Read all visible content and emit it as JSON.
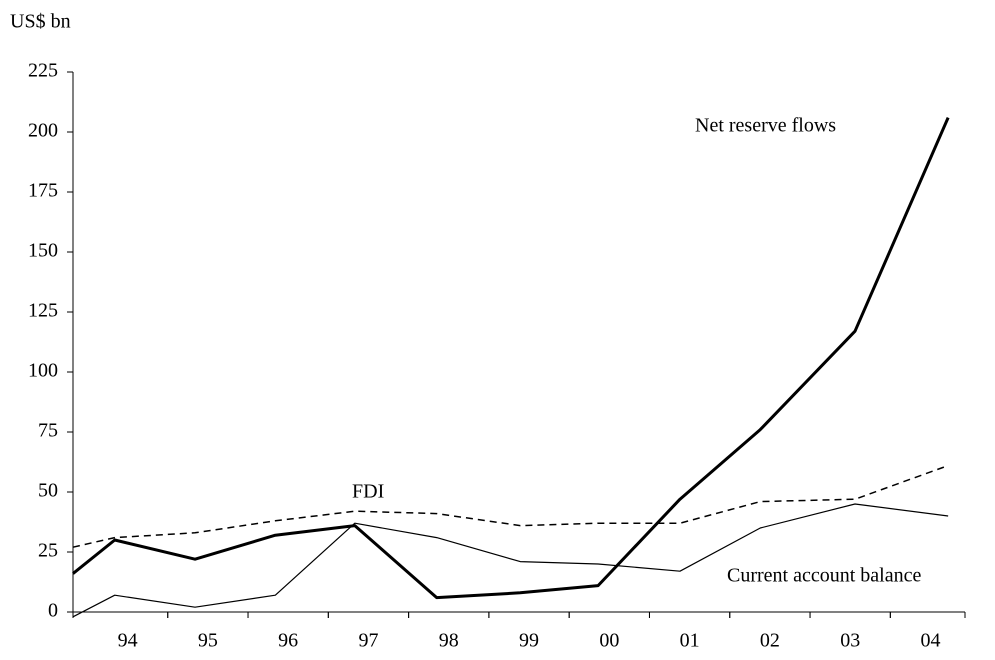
{
  "chart_data": {
    "type": "line",
    "y_label": "US$ bn",
    "x": [
      1993,
      1993.52,
      1994.52,
      1995.52,
      1996.51,
      1997.53,
      1998.57,
      1999.54,
      2000.56,
      2001.56,
      2002.74,
      2003.9
    ],
    "series": [
      {
        "name": "Net reserve flows",
        "color": "#000000",
        "style": "thick",
        "values": [
          16,
          30,
          22,
          32,
          36,
          6,
          8,
          11,
          47,
          76,
          117,
          206
        ]
      },
      {
        "name": "FDI",
        "color": "#000000",
        "style": "dashed",
        "values": [
          27,
          31,
          33,
          38,
          42,
          41,
          36,
          37,
          37,
          46,
          47,
          61
        ]
      },
      {
        "name": "Current account balance",
        "color": "#000000",
        "style": "thin",
        "values": [
          -2,
          7,
          2,
          7,
          37,
          31,
          21,
          20,
          17,
          35,
          45,
          40
        ]
      }
    ],
    "xlim": [
      1993,
      2004.11
    ],
    "xticks": [
      {
        "value": 1993.68,
        "label": "94"
      },
      {
        "value": 1994.68,
        "label": "95"
      },
      {
        "value": 1995.68,
        "label": "96"
      },
      {
        "value": 1996.68,
        "label": "97"
      },
      {
        "value": 1997.68,
        "label": "98"
      },
      {
        "value": 1998.68,
        "label": "99"
      },
      {
        "value": 1999.68,
        "label": "00"
      },
      {
        "value": 2000.68,
        "label": "01"
      },
      {
        "value": 2001.68,
        "label": "02"
      },
      {
        "value": 2002.68,
        "label": "03"
      },
      {
        "value": 2003.68,
        "label": "04"
      }
    ],
    "ylim": [
      0,
      225
    ],
    "yticks": [
      0,
      25,
      50,
      75,
      100,
      125,
      150,
      175,
      200,
      225
    ],
    "grid": false
  }
}
